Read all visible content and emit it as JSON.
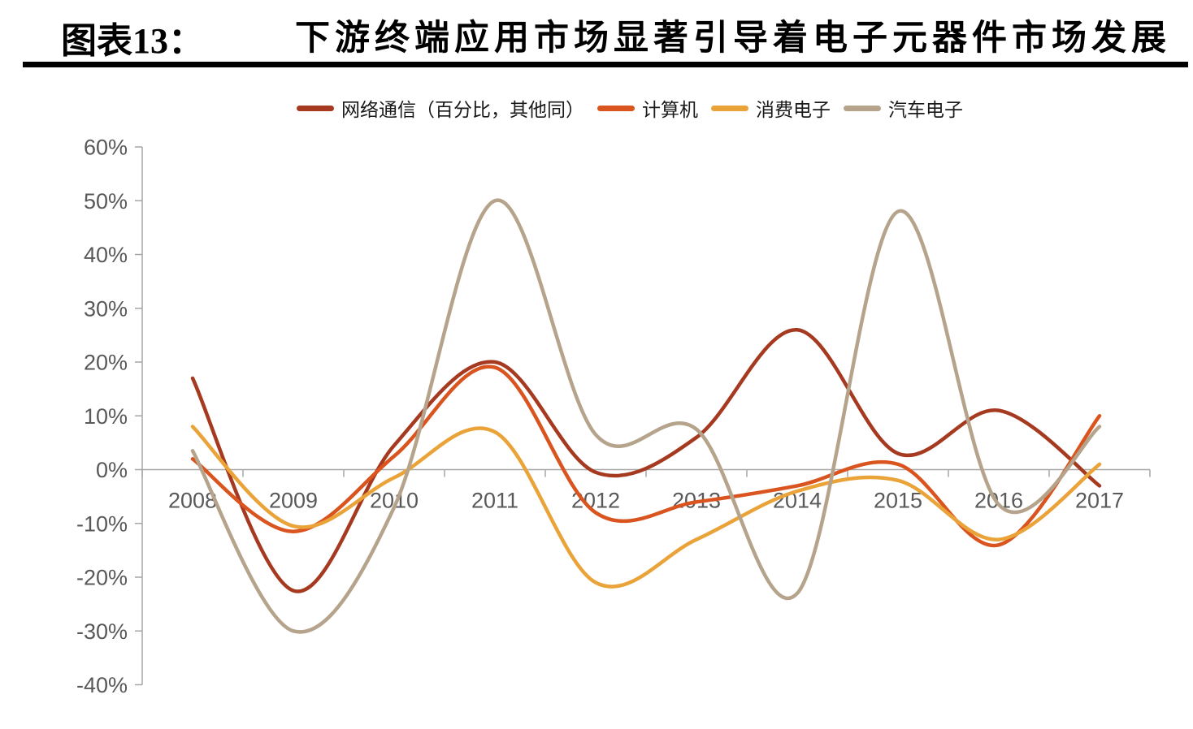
{
  "header": {
    "figure_label": "图表13：",
    "title": "下游终端应用市场显著引导着电子元器件市场发展"
  },
  "chart_data": {
    "type": "line",
    "title": "下游终端应用市场显著引导着电子元器件市场发展",
    "categories": [
      "2008",
      "2009",
      "2010",
      "2011",
      "2012",
      "2013",
      "2014",
      "2015",
      "2016",
      "2017"
    ],
    "series": [
      {
        "name": "网络通信（百分比，其他同）",
        "color": "#A63A21",
        "values": [
          17,
          -22.5,
          4.5,
          20,
          -0.5,
          6,
          26,
          3,
          11,
          -3
        ]
      },
      {
        "name": "计算机",
        "color": "#D9541E",
        "values": [
          2,
          -11.5,
          2.5,
          19,
          -8,
          -6,
          -3,
          1,
          -14,
          10
        ]
      },
      {
        "name": "消费电子",
        "color": "#EAA339",
        "values": [
          8,
          -10.5,
          -1.5,
          7,
          -21,
          -13,
          -4,
          -2,
          -13,
          1
        ]
      },
      {
        "name": "汽车电子",
        "color": "#B5A48B",
        "values": [
          3.5,
          -30,
          -7,
          50,
          6.5,
          7.5,
          -23,
          48,
          -6.5,
          8
        ]
      }
    ],
    "unit": "%",
    "ylim": [
      -40,
      60
    ],
    "ytick_step": 10,
    "ytick_labels": [
      "60%",
      "50%",
      "40%",
      "30%",
      "20%",
      "10%",
      "0%",
      "-10%",
      "-20%",
      "-30%",
      "-40%"
    ],
    "xlabel": "",
    "ylabel": "",
    "legend_position": "top",
    "grid": "zero-baseline-only",
    "smoothed": true,
    "axis_color": "#A6A6A6",
    "tick_label_color": "#595959"
  }
}
